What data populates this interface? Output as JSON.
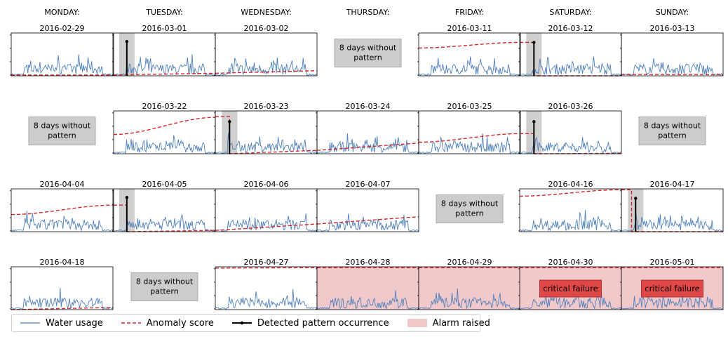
{
  "day_headers": [
    "MONDAY:",
    "TUESDAY:",
    "WEDNESDAY:",
    "THURSDAY:",
    "FRIDAY:",
    "SATURDAY:",
    "SUNDAY:"
  ],
  "colors": {
    "water": "#4f81bd",
    "anomaly": "#d62728",
    "pattern": "#000000",
    "alarm_fill": "#f2c9cb",
    "highlight": "#cfcfcf",
    "gap_box": "#cccccc",
    "critical_box": "#e04848"
  },
  "gap_text": "8 days without pattern",
  "critical_text": "critical failure",
  "legend": [
    {
      "label": "Water usage",
      "kind": "water"
    },
    {
      "label": "Anomaly score",
      "kind": "anomaly"
    },
    {
      "label": "Detected pattern occurrence",
      "kind": "pattern"
    },
    {
      "label": "Alarm raised",
      "kind": "alarm"
    }
  ],
  "chart_data": {
    "type": "line",
    "description_series": [
      "Water usage",
      "Anomaly score",
      "Detected pattern occurrence",
      "Alarm raised"
    ],
    "rows": [
      [
        {
          "kind": "chart",
          "date": "2016-02-29",
          "anomaly": [
            0.02,
            0.02
          ]
        },
        {
          "kind": "chart",
          "date": "2016-03-01",
          "anomaly": [
            0.02,
            0.06
          ],
          "pattern": 0.13,
          "pattern_height": 0.8
        },
        {
          "kind": "chart",
          "date": "2016-03-02",
          "anomaly": [
            0.06,
            0.12
          ]
        },
        {
          "kind": "gap"
        },
        {
          "kind": "chart",
          "date": "2016-03-11",
          "anomaly": [
            0.65,
            0.78
          ],
          "anomaly_shape": "s-curve"
        },
        {
          "kind": "chart",
          "date": "2016-03-12",
          "anomaly": [
            0.78,
            0.78
          ],
          "pattern": 0.14,
          "pattern_height": 0.78,
          "drop_at": 0.14
        },
        {
          "kind": "chart",
          "date": "2016-03-13",
          "anomaly": [
            0.03,
            0.03
          ]
        }
      ],
      [
        {
          "kind": "gap"
        },
        {
          "kind": "chart",
          "date": "2016-03-22",
          "anomaly": [
            0.45,
            0.85
          ],
          "anomaly_shape": "s-curve"
        },
        {
          "kind": "chart",
          "date": "2016-03-23",
          "anomaly": [
            0.87,
            0.87
          ],
          "pattern": 0.14,
          "pattern_height": 0.75,
          "drop_at": 0.14,
          "after": [
            0.0,
            0.08
          ]
        },
        {
          "kind": "chart",
          "date": "2016-03-24",
          "anomaly": [
            0.08,
            0.25
          ]
        },
        {
          "kind": "chart",
          "date": "2016-03-25",
          "anomaly": [
            0.27,
            0.47
          ],
          "anomaly_shape": "s-curve"
        },
        {
          "kind": "chart",
          "date": "2016-03-26",
          "anomaly": [
            0.47,
            0.47
          ],
          "pattern": 0.14,
          "pattern_height": 0.75,
          "drop_at": 0.14,
          "after": [
            0.0,
            0.01
          ]
        },
        {
          "kind": "gap"
        }
      ],
      [
        {
          "kind": "chart",
          "date": "2016-04-04",
          "anomaly": [
            0.4,
            0.62
          ],
          "anomaly_shape": "s-curve"
        },
        {
          "kind": "chart",
          "date": "2016-04-05",
          "anomaly": [
            0.62,
            0.62
          ],
          "pattern": 0.13,
          "pattern_height": 0.8,
          "drop_at": 0.13,
          "after": [
            0.0,
            0.03
          ]
        },
        {
          "kind": "chart",
          "date": "2016-04-06",
          "anomaly": [
            0.03,
            0.18
          ]
        },
        {
          "kind": "chart",
          "date": "2016-04-07",
          "anomaly": [
            0.18,
            0.35
          ]
        },
        {
          "kind": "gap"
        },
        {
          "kind": "chart",
          "date": "2016-04-16",
          "anomaly": [
            0.83,
            0.98
          ],
          "anomaly_shape": "s-curve"
        },
        {
          "kind": "chart",
          "date": "2016-04-17",
          "anomaly": [
            0.98,
            0.98
          ],
          "pattern": 0.14,
          "pattern_height": 0.78,
          "drop_at": 0.1,
          "after": [
            0.0,
            0.0
          ]
        }
      ],
      [
        {
          "kind": "chart",
          "date": "2016-04-18",
          "anomaly": [
            0.0,
            0.05
          ]
        },
        {
          "kind": "gap"
        },
        {
          "kind": "chart",
          "date": "2016-04-27",
          "anomaly": [
            0.97,
            0.98
          ]
        },
        {
          "kind": "chart",
          "date": "2016-04-28",
          "anomaly": [
            0.98,
            0.98
          ],
          "alarm": true
        },
        {
          "kind": "chart",
          "date": "2016-04-29",
          "anomaly": [
            0.98,
            0.98
          ],
          "alarm": true
        },
        {
          "kind": "chart",
          "date": "2016-04-30",
          "anomaly": [
            0.98,
            0.98
          ],
          "alarm": true,
          "critical": true
        },
        {
          "kind": "chart",
          "date": "2016-05-01",
          "anomaly": [
            0.98,
            0.98
          ],
          "alarm": true,
          "critical": true
        }
      ]
    ]
  }
}
